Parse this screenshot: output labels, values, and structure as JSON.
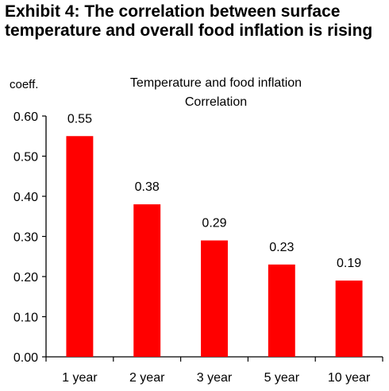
{
  "exhibit_title": "Exhibit 4: The correlation between surface temperature and overall food inflation is rising",
  "chart_data": {
    "type": "bar",
    "title": "Temperature and food inflation",
    "subtitle": "Correlation",
    "ylabel": "coeff.",
    "xlabel": "",
    "categories": [
      "1 year",
      "2 year",
      "3 year",
      "5 year",
      "10 year"
    ],
    "values": [
      0.55,
      0.38,
      0.29,
      0.23,
      0.19
    ],
    "data_labels": [
      "0.55",
      "0.38",
      "0.29",
      "0.23",
      "0.19"
    ],
    "ylim": [
      0,
      0.6
    ],
    "yticks": [
      "0.00",
      "0.10",
      "0.20",
      "0.30",
      "0.40",
      "0.50",
      "0.60"
    ],
    "bar_color": "#ff0000",
    "grid": false,
    "legend": "none"
  }
}
